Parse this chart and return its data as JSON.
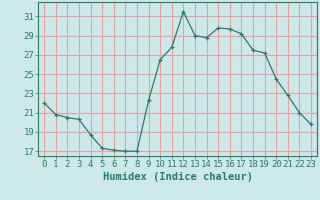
{
  "x": [
    0,
    1,
    2,
    3,
    4,
    5,
    6,
    7,
    8,
    9,
    10,
    11,
    12,
    13,
    14,
    15,
    16,
    17,
    18,
    19,
    20,
    21,
    22,
    23
  ],
  "y": [
    22.0,
    20.8,
    20.5,
    20.3,
    18.7,
    17.3,
    17.1,
    17.0,
    17.0,
    22.3,
    26.5,
    27.8,
    31.5,
    29.0,
    28.8,
    29.8,
    29.7,
    29.2,
    27.5,
    27.2,
    24.5,
    22.8,
    21.0,
    19.8
  ],
  "line_color": "#2d7a6e",
  "marker": "+",
  "marker_size": 3,
  "bg_color": "#cce8e8",
  "grid_color": "#e8a0a0",
  "xlabel": "Humidex (Indice chaleur)",
  "ylim": [
    16.5,
    32.5
  ],
  "xlim": [
    -0.5,
    23.5
  ],
  "yticks": [
    17,
    19,
    21,
    23,
    25,
    27,
    29,
    31
  ],
  "xticks": [
    0,
    1,
    2,
    3,
    4,
    5,
    6,
    7,
    8,
    9,
    10,
    11,
    12,
    13,
    14,
    15,
    16,
    17,
    18,
    19,
    20,
    21,
    22,
    23
  ],
  "tick_fontsize": 6.5,
  "xlabel_fontsize": 7.5
}
